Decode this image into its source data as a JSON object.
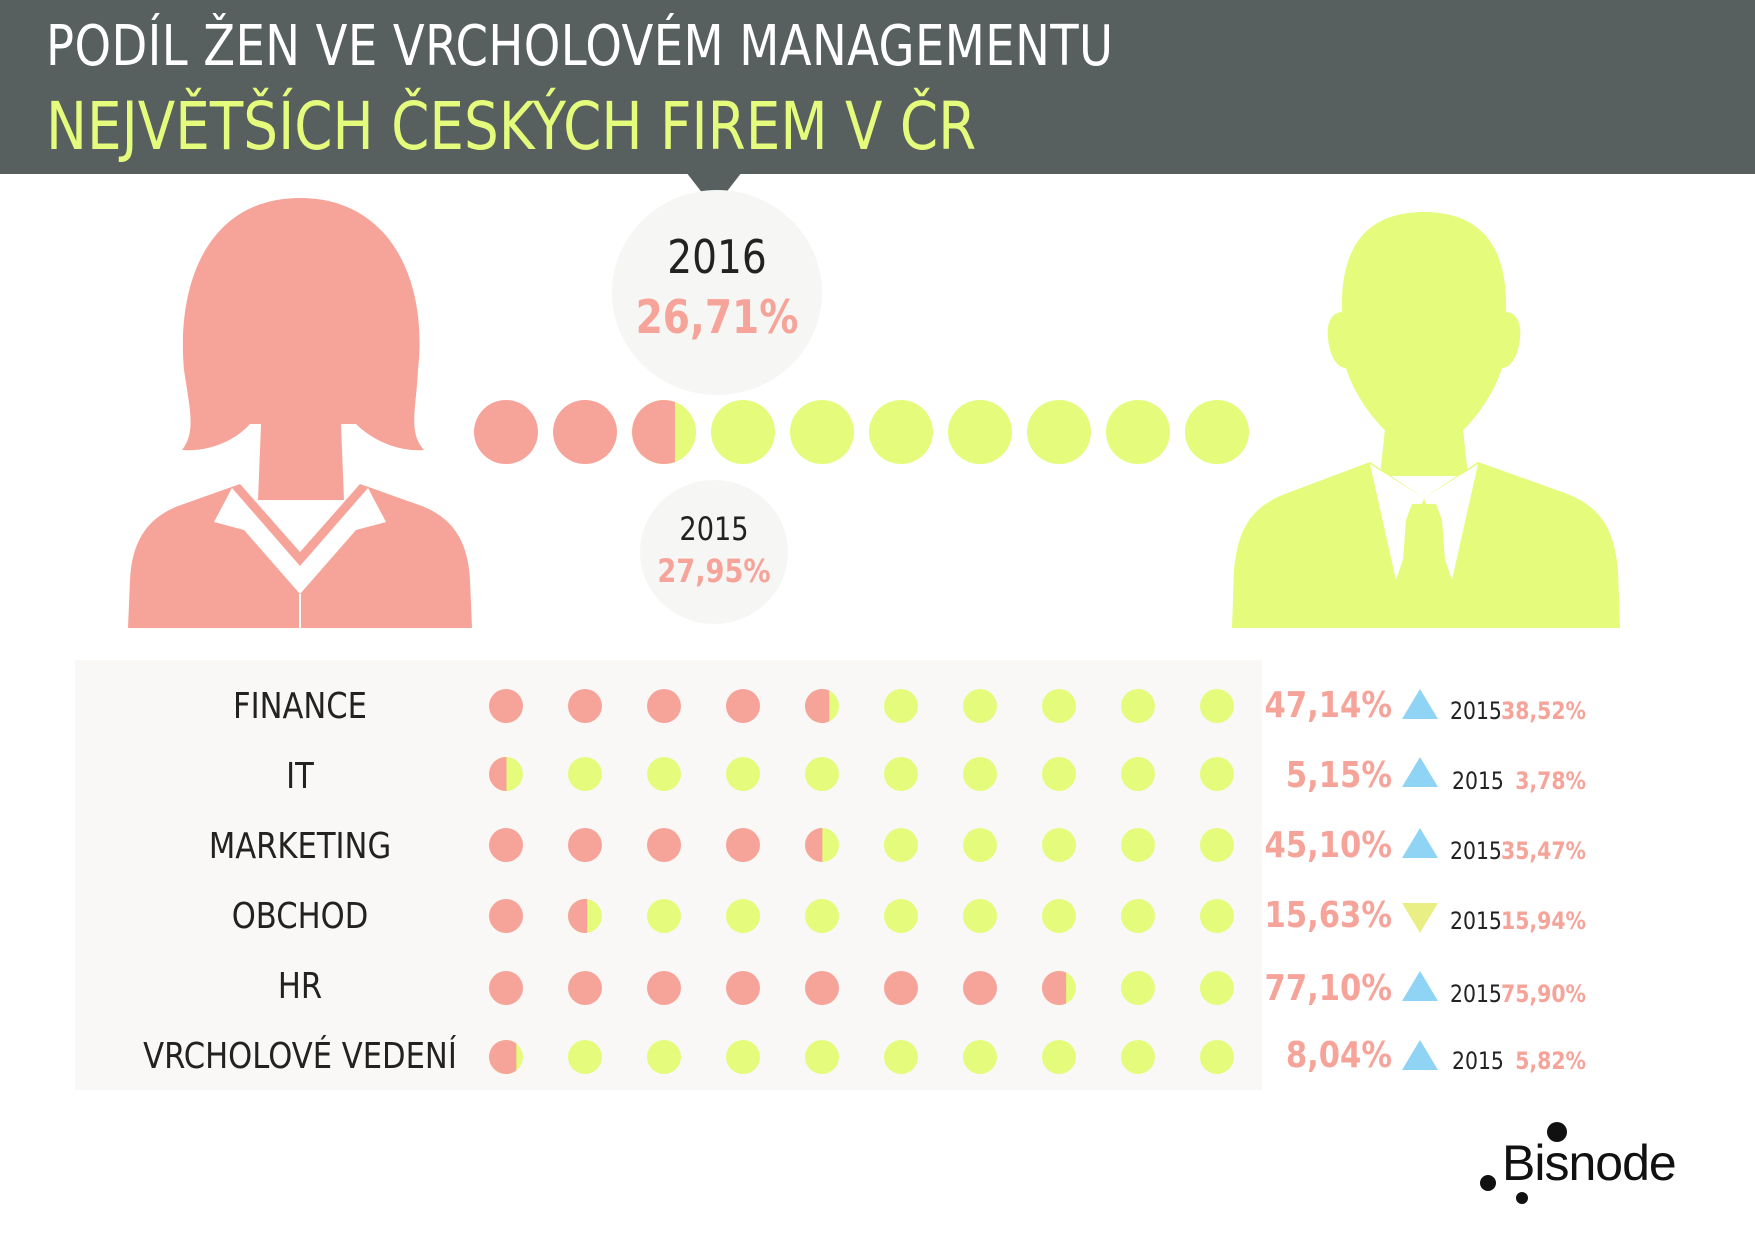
{
  "header": {
    "title_line1": "PODÍL ŽEN VE VRCHOLOVÉM MANAGEMENTU",
    "title_line2": "NEJVĚTŠÍCH ČESKÝCH FIREM  V ČR"
  },
  "overall": {
    "current_year": "2016",
    "current_value": "26,71%",
    "current_share": 26.71,
    "previous_year": "2015",
    "previous_value": "27,95%"
  },
  "colors": {
    "women": "#f6a49a",
    "men": "#e4fb7c",
    "header_bg": "#585f5f",
    "arrow_up": "#8fd3f5",
    "arrow_down": "#e9ee85"
  },
  "icons": {
    "woman": "woman-silhouette-icon",
    "man": "man-silhouette-icon",
    "up": "triangle-up-icon",
    "down": "triangle-down-icon"
  },
  "chart_data": {
    "type": "table",
    "categories": [
      "FINANCE",
      "IT",
      "MARKETING",
      "OBCHOD",
      "HR",
      "VRCHOLOVÉ VEDENÍ"
    ],
    "series": [
      {
        "name": "2016",
        "values": [
          47.14,
          5.15,
          45.1,
          15.63,
          77.1,
          8.04
        ]
      },
      {
        "name": "2015",
        "values": [
          38.52,
          3.78,
          35.47,
          15.94,
          75.9,
          5.82
        ]
      }
    ],
    "rows": [
      {
        "category": "FINANCE",
        "value": "47,14%",
        "share": 47.14,
        "trend": "up",
        "prev_year": "2015",
        "prev_value": "38,52%"
      },
      {
        "category": "IT",
        "value": "5,15%",
        "share": 5.15,
        "trend": "up",
        "prev_year": "2015",
        "prev_value": "3,78%"
      },
      {
        "category": "MARKETING",
        "value": "45,10%",
        "share": 45.1,
        "trend": "up",
        "prev_year": "2015",
        "prev_value": "35,47%"
      },
      {
        "category": "OBCHOD",
        "value": "15,63%",
        "share": 15.63,
        "trend": "down",
        "prev_year": "2015",
        "prev_value": "15,94%"
      },
      {
        "category": "HR",
        "value": "77,10%",
        "share": 77.1,
        "trend": "up",
        "prev_year": "2015",
        "prev_value": "75,90%"
      },
      {
        "category": "VRCHOLOVÉ VEDENÍ",
        "value": "8,04%",
        "share": 8.04,
        "trend": "up",
        "prev_year": "2015",
        "prev_value": "5,82%"
      }
    ]
  },
  "brand": {
    "name": "Bisnode"
  }
}
